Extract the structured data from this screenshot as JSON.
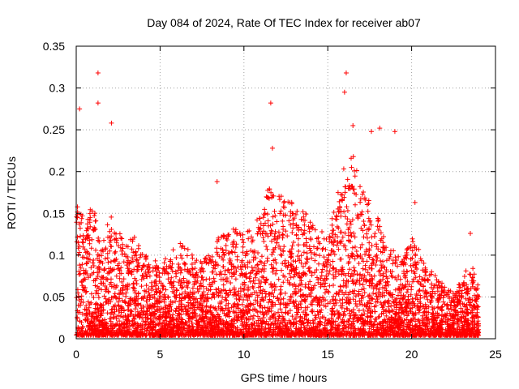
{
  "chart_data": {
    "type": "scatter",
    "title": "Day 084 of 2024, Rate Of TEC Index for receiver ab07",
    "xlabel": "GPS time / hours",
    "ylabel": "ROTI / TECUs",
    "xlim": [
      0,
      25
    ],
    "ylim": [
      0,
      0.35
    ],
    "x_ticks": [
      0,
      5,
      10,
      15,
      20,
      25
    ],
    "x_tick_labels": [
      "0",
      "5",
      "10",
      "15",
      "20",
      "25"
    ],
    "y_ticks": [
      0,
      0.05,
      0.1,
      0.15,
      0.2,
      0.25,
      0.3,
      0.35
    ],
    "y_tick_labels": [
      "0",
      "0.05",
      "0.1",
      "0.15",
      "0.2",
      "0.25",
      "0.3",
      "0.35"
    ],
    "grid": true,
    "marker": "plus",
    "marker_color": "#ff0000",
    "x_data_range": [
      0,
      24
    ],
    "notable_points": [
      {
        "x": 1.3,
        "y": 0.318
      },
      {
        "x": 1.3,
        "y": 0.282
      },
      {
        "x": 0.2,
        "y": 0.275
      },
      {
        "x": 2.1,
        "y": 0.258
      },
      {
        "x": 11.6,
        "y": 0.282
      },
      {
        "x": 11.7,
        "y": 0.228
      },
      {
        "x": 16.1,
        "y": 0.318
      },
      {
        "x": 16.0,
        "y": 0.295
      },
      {
        "x": 16.5,
        "y": 0.255
      },
      {
        "x": 17.6,
        "y": 0.248
      },
      {
        "x": 19.0,
        "y": 0.248
      },
      {
        "x": 18.1,
        "y": 0.252
      },
      {
        "x": 8.4,
        "y": 0.188
      },
      {
        "x": 20.2,
        "y": 0.163
      },
      {
        "x": 23.5,
        "y": 0.126
      }
    ],
    "density_profile": [
      {
        "x": 0,
        "y_max": 0.16
      },
      {
        "x": 0.5,
        "y_max": 0.14
      },
      {
        "x": 1,
        "y_max": 0.16
      },
      {
        "x": 1.5,
        "y_max": 0.1
      },
      {
        "x": 2,
        "y_max": 0.15
      },
      {
        "x": 2.5,
        "y_max": 0.13
      },
      {
        "x": 3,
        "y_max": 0.11
      },
      {
        "x": 3.5,
        "y_max": 0.12
      },
      {
        "x": 4,
        "y_max": 0.1
      },
      {
        "x": 4.5,
        "y_max": 0.09
      },
      {
        "x": 5,
        "y_max": 0.09
      },
      {
        "x": 5.5,
        "y_max": 0.1
      },
      {
        "x": 6,
        "y_max": 0.11
      },
      {
        "x": 6.5,
        "y_max": 0.11
      },
      {
        "x": 7,
        "y_max": 0.1
      },
      {
        "x": 7.5,
        "y_max": 0.09
      },
      {
        "x": 8,
        "y_max": 0.1
      },
      {
        "x": 8.5,
        "y_max": 0.12
      },
      {
        "x": 9,
        "y_max": 0.12
      },
      {
        "x": 9.5,
        "y_max": 0.13
      },
      {
        "x": 10,
        "y_max": 0.12
      },
      {
        "x": 10.5,
        "y_max": 0.13
      },
      {
        "x": 11,
        "y_max": 0.15
      },
      {
        "x": 11.5,
        "y_max": 0.18
      },
      {
        "x": 12,
        "y_max": 0.17
      },
      {
        "x": 12.5,
        "y_max": 0.17
      },
      {
        "x": 13,
        "y_max": 0.16
      },
      {
        "x": 13.5,
        "y_max": 0.15
      },
      {
        "x": 14,
        "y_max": 0.14
      },
      {
        "x": 14.5,
        "y_max": 0.13
      },
      {
        "x": 15,
        "y_max": 0.12
      },
      {
        "x": 15.5,
        "y_max": 0.16
      },
      {
        "x": 16,
        "y_max": 0.21
      },
      {
        "x": 16.5,
        "y_max": 0.22
      },
      {
        "x": 17,
        "y_max": 0.18
      },
      {
        "x": 17.5,
        "y_max": 0.16
      },
      {
        "x": 18,
        "y_max": 0.14
      },
      {
        "x": 18.5,
        "y_max": 0.12
      },
      {
        "x": 19,
        "y_max": 0.1
      },
      {
        "x": 19.5,
        "y_max": 0.09
      },
      {
        "x": 20,
        "y_max": 0.12
      },
      {
        "x": 20.5,
        "y_max": 0.1
      },
      {
        "x": 21,
        "y_max": 0.08
      },
      {
        "x": 21.5,
        "y_max": 0.07
      },
      {
        "x": 22,
        "y_max": 0.06
      },
      {
        "x": 22.5,
        "y_max": 0.05
      },
      {
        "x": 23,
        "y_max": 0.07
      },
      {
        "x": 23.5,
        "y_max": 0.09
      },
      {
        "x": 24,
        "y_max": 0.06
      }
    ]
  }
}
